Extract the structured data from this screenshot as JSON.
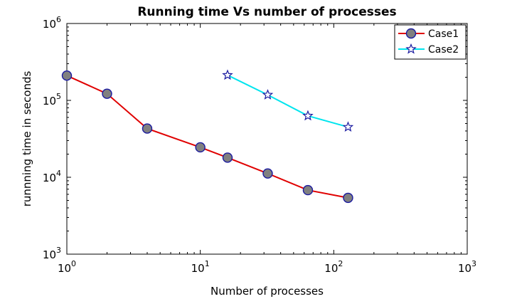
{
  "chart_data": {
    "type": "line",
    "title": "Running time Vs number of processes",
    "xlabel": "Number of processes",
    "ylabel": "runnning time in seconds",
    "xscale": "log",
    "yscale": "log",
    "xlim": [
      1,
      1000
    ],
    "ylim": [
      1000,
      1000000
    ],
    "xticks": [
      {
        "value": 1,
        "base": "10",
        "exp": "0"
      },
      {
        "value": 10,
        "base": "10",
        "exp": "1"
      },
      {
        "value": 100,
        "base": "10",
        "exp": "2"
      },
      {
        "value": 1000,
        "base": "10",
        "exp": "3"
      }
    ],
    "yticks": [
      {
        "value": 1000,
        "base": "10",
        "exp": "3"
      },
      {
        "value": 10000,
        "base": "10",
        "exp": "4"
      },
      {
        "value": 100000,
        "base": "10",
        "exp": "5"
      },
      {
        "value": 1000000,
        "base": "10",
        "exp": "6"
      }
    ],
    "grid": false,
    "legend_position": "top-right",
    "series": [
      {
        "name": "Case1",
        "marker": "circle",
        "line_color": "#e00000",
        "marker_fill": "#808080",
        "marker_edge": "#1a1aa0",
        "x": [
          1,
          2,
          4,
          10,
          16,
          32,
          64,
          128
        ],
        "y": [
          210000,
          122000,
          43000,
          24500,
          18000,
          11200,
          6800,
          5400
        ]
      },
      {
        "name": "Case2",
        "marker": "star",
        "line_color": "#00e5ee",
        "marker_fill": "#ffffff",
        "marker_edge": "#1a1aa0",
        "x": [
          16,
          32,
          64,
          128
        ],
        "y": [
          213000,
          118000,
          63000,
          45000
        ]
      }
    ]
  }
}
